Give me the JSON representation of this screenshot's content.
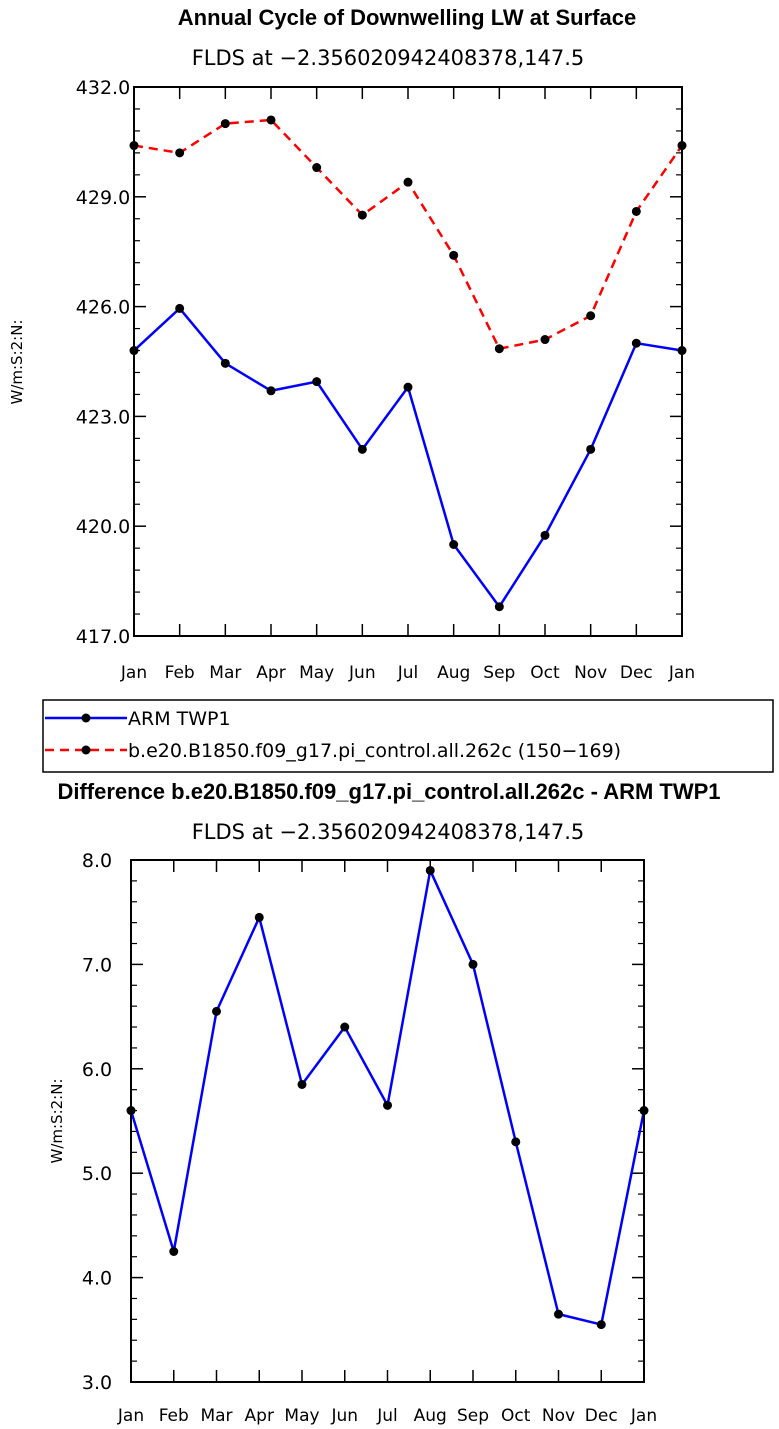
{
  "chart_data": [
    {
      "type": "line",
      "title": "Annual Cycle of Downwelling LW at Surface",
      "subtitle": "FLDS at −2.356020942408378,147.5",
      "xlabel": "",
      "ylabel": "W/m:S:2:N:",
      "categories": [
        "Jan",
        "Feb",
        "Mar",
        "Apr",
        "May",
        "Jun",
        "Jul",
        "Aug",
        "Sep",
        "Oct",
        "Nov",
        "Dec",
        "Jan"
      ],
      "ylim": [
        417.0,
        432.0
      ],
      "yticks": [
        "417.0",
        "420.0",
        "423.0",
        "426.0",
        "429.0",
        "432.0"
      ],
      "series": [
        {
          "name": "ARM TWP1",
          "color": "#0000ff",
          "dash": "solid",
          "values": [
            424.8,
            425.95,
            424.45,
            423.7,
            423.95,
            422.1,
            423.8,
            419.5,
            417.8,
            419.75,
            422.1,
            425.0,
            424.8
          ]
        },
        {
          "name": "b.e20.B1850.f09_g17.pi_control.all.262c (150−169)",
          "color": "#ff0000",
          "dash": "dashed",
          "values": [
            430.4,
            430.2,
            431.0,
            431.1,
            429.8,
            428.5,
            429.4,
            427.4,
            424.85,
            425.1,
            425.75,
            428.6,
            430.4
          ]
        }
      ],
      "legend": [
        {
          "label": "ARM TWP1",
          "color": "#0000ff",
          "dash": "solid"
        },
        {
          "label": "b.e20.B1850.f09_g17.pi_control.all.262c (150−169)",
          "color": "#ff0000",
          "dash": "dashed"
        }
      ]
    },
    {
      "type": "line",
      "title": "Difference b.e20.B1850.f09_g17.pi_control.all.262c - ARM TWP1",
      "subtitle": "FLDS at −2.356020942408378,147.5",
      "xlabel": "",
      "ylabel": "W/m:S:2:N:",
      "categories": [
        "Jan",
        "Feb",
        "Mar",
        "Apr",
        "May",
        "Jun",
        "Jul",
        "Aug",
        "Sep",
        "Oct",
        "Nov",
        "Dec",
        "Jan"
      ],
      "ylim": [
        3.0,
        8.0
      ],
      "yticks": [
        "3.0",
        "4.0",
        "5.0",
        "6.0",
        "7.0",
        "8.0"
      ],
      "series": [
        {
          "name": "Difference",
          "color": "#0000ff",
          "dash": "solid",
          "values": [
            5.6,
            4.25,
            6.55,
            7.45,
            5.85,
            6.4,
            5.65,
            7.9,
            7.0,
            5.3,
            3.65,
            3.55,
            5.6
          ]
        }
      ]
    }
  ]
}
